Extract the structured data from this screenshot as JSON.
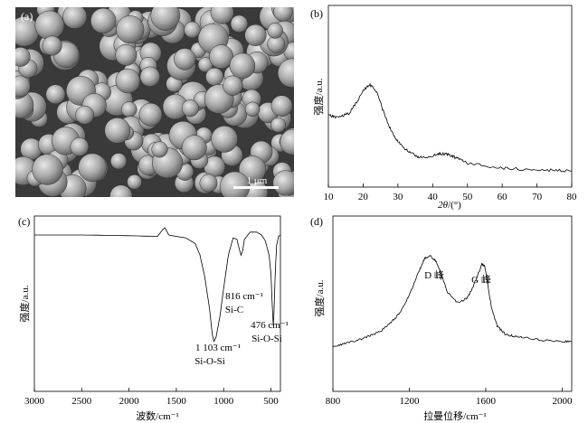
{
  "chart_data": [
    {
      "panel": "(a)",
      "type": "other",
      "scale_bar_label": "1 μm",
      "particles": "dense cluster of sub-micrometre spherical particles"
    },
    {
      "panel": "(b)",
      "type": "line",
      "title": "",
      "xlabel_italic": "2θ",
      "xlabel_suffix": "/(°)",
      "ylabel": "强度/a.u.",
      "xlim": [
        10,
        80
      ],
      "xticks": [
        "10",
        "20",
        "30",
        "40",
        "50",
        "60",
        "70",
        "80"
      ],
      "y_ticks_shown": false,
      "series": [
        {
          "x": [
            10,
            12,
            14,
            16,
            18,
            20,
            22,
            24,
            26,
            28,
            30,
            32,
            34,
            36,
            38,
            40,
            42,
            44,
            46,
            48,
            50,
            55,
            60,
            65,
            70,
            75,
            80
          ],
          "y": [
            0.6,
            0.58,
            0.59,
            0.62,
            0.72,
            0.84,
            0.9,
            0.82,
            0.62,
            0.45,
            0.34,
            0.27,
            0.22,
            0.19,
            0.18,
            0.2,
            0.22,
            0.22,
            0.19,
            0.16,
            0.13,
            0.1,
            0.08,
            0.07,
            0.06,
            0.06,
            0.05
          ]
        }
      ]
    },
    {
      "panel": "(c)",
      "type": "line",
      "title": "",
      "xlabel": "波数/cm⁻¹",
      "ylabel": "强度/a.u.",
      "xlim": [
        3000,
        400
      ],
      "xticks": [
        "3000",
        "2500",
        "2000",
        "1500",
        "1000",
        "500"
      ],
      "y_ticks_shown": false,
      "series": [
        {
          "x": [
            3000,
            2500,
            2000,
            1700,
            1640,
            1620,
            1580,
            1500,
            1400,
            1300,
            1250,
            1200,
            1150,
            1120,
            1103,
            1080,
            1040,
            1000,
            950,
            900,
            860,
            830,
            816,
            800,
            780,
            720,
            650,
            600,
            560,
            520,
            500,
            490,
            480,
            476,
            470,
            460,
            450,
            440,
            420,
            400
          ],
          "y": [
            0.99,
            0.99,
            0.985,
            0.98,
            1.03,
            1.04,
            0.99,
            0.98,
            0.97,
            0.93,
            0.85,
            0.7,
            0.48,
            0.3,
            0.25,
            0.28,
            0.42,
            0.62,
            0.85,
            0.97,
            0.96,
            0.88,
            0.85,
            0.88,
            0.96,
            1.01,
            1.01,
            0.99,
            0.95,
            0.85,
            0.72,
            0.55,
            0.42,
            0.36,
            0.42,
            0.62,
            0.8,
            0.92,
            0.98,
            0.99
          ]
        }
      ],
      "annotations": [
        {
          "line1": "1 103 cm⁻¹",
          "line2": "Si-O-Si"
        },
        {
          "line1": "816 cm⁻¹",
          "line2": "Si-C"
        },
        {
          "line1": "476 cm⁻¹",
          "line2": "Si-O-Si"
        }
      ]
    },
    {
      "panel": "(d)",
      "type": "line",
      "title": "",
      "xlabel": "拉曼位移/cm⁻¹",
      "ylabel": "强度/a.u.",
      "xlim": [
        800,
        2050
      ],
      "xticks": [
        "800",
        "1200",
        "1600",
        "2000"
      ],
      "y_ticks_shown": false,
      "series": [
        {
          "x": [
            800,
            850,
            900,
            950,
            1000,
            1050,
            1100,
            1150,
            1200,
            1250,
            1280,
            1310,
            1340,
            1370,
            1400,
            1450,
            1500,
            1530,
            1560,
            1580,
            1595,
            1610,
            1630,
            1660,
            1700,
            1750,
            1800,
            1900,
            2000,
            2050
          ],
          "y": [
            0.1,
            0.12,
            0.14,
            0.16,
            0.19,
            0.22,
            0.28,
            0.36,
            0.5,
            0.68,
            0.78,
            0.8,
            0.76,
            0.65,
            0.52,
            0.44,
            0.47,
            0.55,
            0.66,
            0.74,
            0.72,
            0.58,
            0.4,
            0.26,
            0.2,
            0.18,
            0.17,
            0.15,
            0.14,
            0.14
          ]
        }
      ],
      "annotations": [
        {
          "text": "D 峰"
        },
        {
          "text": "G 峰"
        }
      ]
    }
  ]
}
